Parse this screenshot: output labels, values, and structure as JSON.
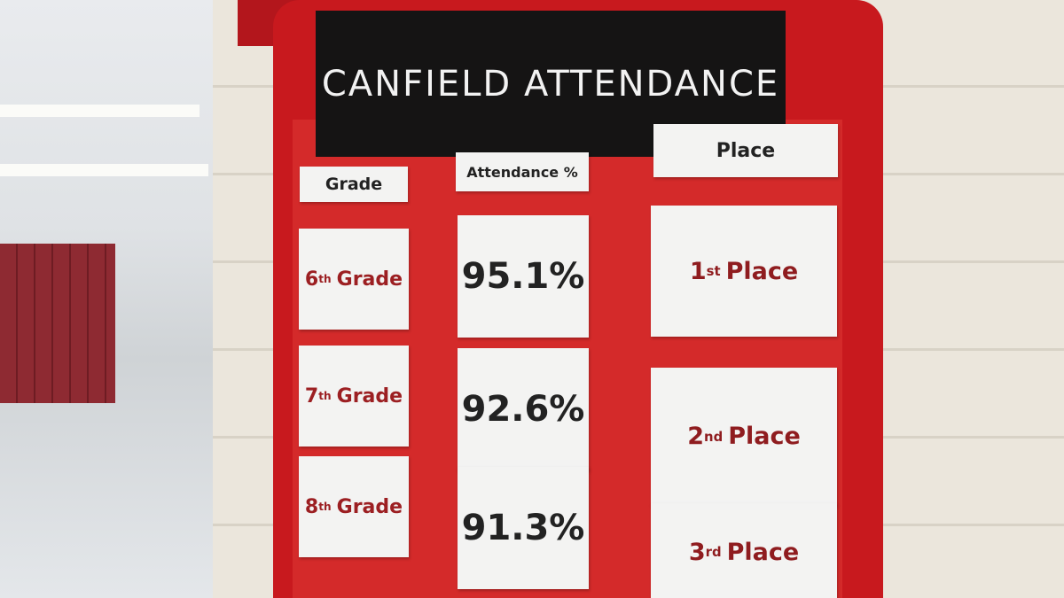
{
  "board": {
    "title": {
      "left": "CANFIELD",
      "right": "ATTENDANCE"
    },
    "headers": {
      "grade": "Grade",
      "attendance": "Attendance %",
      "place": "Place"
    },
    "rows": [
      {
        "grade_number": "6",
        "grade_suffix": "th",
        "grade_word": "Grade",
        "attendance": "95.1%",
        "place_number": "1",
        "place_suffix": "st",
        "place_word": "Place"
      },
      {
        "grade_number": "7",
        "grade_suffix": "th",
        "grade_word": "Grade",
        "attendance": "92.6%",
        "place_number": "2",
        "place_suffix": "nd",
        "place_word": "Place"
      },
      {
        "grade_number": "8",
        "grade_suffix": "th",
        "grade_word": "Grade",
        "attendance": "91.3%",
        "place_number": "3",
        "place_suffix": "rd",
        "place_word": "Place"
      }
    ]
  }
}
